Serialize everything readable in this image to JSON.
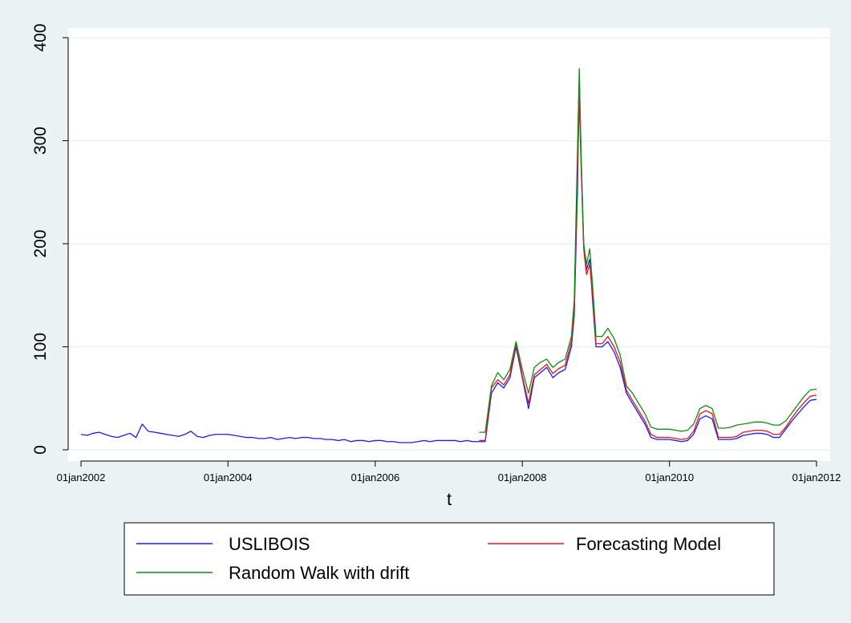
{
  "chart_data": {
    "type": "line",
    "x_label": "t",
    "x": [
      "2002-01-01",
      "2002-02-01",
      "2002-03-01",
      "2002-04-01",
      "2002-05-01",
      "2002-06-01",
      "2002-07-01",
      "2002-08-01",
      "2002-09-01",
      "2002-10-01",
      "2002-11-01",
      "2002-12-01",
      "2003-01-01",
      "2003-02-01",
      "2003-03-01",
      "2003-04-01",
      "2003-05-01",
      "2003-06-01",
      "2003-07-01",
      "2003-08-01",
      "2003-09-01",
      "2003-10-01",
      "2003-11-01",
      "2003-12-01",
      "2004-01-01",
      "2004-02-01",
      "2004-03-01",
      "2004-04-01",
      "2004-05-01",
      "2004-06-01",
      "2004-07-01",
      "2004-08-01",
      "2004-09-01",
      "2004-10-01",
      "2004-11-01",
      "2004-12-01",
      "2005-01-01",
      "2005-02-01",
      "2005-03-01",
      "2005-04-01",
      "2005-05-01",
      "2005-06-01",
      "2005-07-01",
      "2005-08-01",
      "2005-09-01",
      "2005-10-01",
      "2005-11-01",
      "2005-12-01",
      "2006-01-01",
      "2006-02-01",
      "2006-03-01",
      "2006-04-01",
      "2006-05-01",
      "2006-06-01",
      "2006-07-01",
      "2006-08-01",
      "2006-09-01",
      "2006-10-01",
      "2006-11-01",
      "2006-12-01",
      "2007-01-01",
      "2007-02-01",
      "2007-03-01",
      "2007-04-01",
      "2007-05-01",
      "2007-06-01",
      "2007-07-01",
      "2007-08-01",
      "2007-09-01",
      "2007-10-01",
      "2007-11-01",
      "2007-12-01",
      "2008-01-01",
      "2008-02-01",
      "2008-03-01",
      "2008-04-01",
      "2008-05-01",
      "2008-06-01",
      "2008-07-01",
      "2008-08-01",
      "2008-09-01",
      "2008-09-15",
      "2008-10-01",
      "2008-10-10",
      "2008-10-20",
      "2008-11-01",
      "2008-11-15",
      "2008-12-01",
      "2008-12-15",
      "2009-01-01",
      "2009-02-01",
      "2009-03-01",
      "2009-04-01",
      "2009-05-01",
      "2009-06-01",
      "2009-07-01",
      "2009-08-01",
      "2009-09-01",
      "2009-10-01",
      "2009-11-01",
      "2009-12-01",
      "2010-01-01",
      "2010-02-01",
      "2010-03-01",
      "2010-04-01",
      "2010-05-01",
      "2010-06-01",
      "2010-07-01",
      "2010-08-01",
      "2010-09-01",
      "2010-10-01",
      "2010-11-01",
      "2010-12-01",
      "2011-01-01",
      "2011-02-01",
      "2011-03-01",
      "2011-04-01",
      "2011-05-01",
      "2011-06-01",
      "2011-07-01",
      "2011-08-01",
      "2011-09-01",
      "2011-10-01",
      "2011-11-01",
      "2011-12-01",
      "2012-01-01"
    ],
    "series": [
      {
        "name": "USLIBOIS",
        "color": "#1a1aff",
        "values": [
          15,
          14,
          16,
          17,
          15,
          13,
          12,
          14,
          16,
          12,
          25,
          18,
          17,
          16,
          15,
          14,
          13,
          15,
          18,
          13,
          12,
          14,
          15,
          15,
          15,
          14,
          13,
          12,
          12,
          11,
          11,
          12,
          10,
          11,
          12,
          11,
          12,
          12,
          11,
          11,
          10,
          10,
          9,
          10,
          8,
          9,
          9,
          8,
          9,
          9,
          8,
          8,
          7,
          7,
          7,
          8,
          9,
          8,
          9,
          9,
          9,
          9,
          8,
          9,
          8,
          8,
          8,
          55,
          65,
          60,
          70,
          100,
          70,
          40,
          70,
          75,
          80,
          70,
          75,
          78,
          100,
          130,
          250,
          360,
          280,
          200,
          175,
          185,
          145,
          100,
          100,
          105,
          95,
          80,
          55,
          45,
          35,
          25,
          12,
          10,
          10,
          10,
          9,
          8,
          9,
          15,
          30,
          33,
          30,
          10,
          10,
          10,
          11,
          14,
          15,
          16,
          16,
          15,
          12,
          12,
          20,
          28,
          35,
          42,
          48,
          49
        ]
      },
      {
        "name": "Forecasting Model",
        "color": "#e8141c",
        "values": [
          null,
          null,
          null,
          null,
          null,
          null,
          null,
          null,
          null,
          null,
          null,
          null,
          null,
          null,
          null,
          null,
          null,
          null,
          null,
          null,
          null,
          null,
          null,
          null,
          null,
          null,
          null,
          null,
          null,
          null,
          null,
          null,
          null,
          null,
          null,
          null,
          null,
          null,
          null,
          null,
          null,
          null,
          null,
          null,
          null,
          null,
          null,
          null,
          null,
          null,
          null,
          null,
          null,
          null,
          null,
          null,
          null,
          null,
          null,
          null,
          null,
          null,
          null,
          null,
          null,
          9,
          9,
          60,
          68,
          63,
          73,
          103,
          72,
          45,
          73,
          78,
          83,
          74,
          79,
          82,
          105,
          135,
          270,
          340,
          270,
          195,
          170,
          180,
          150,
          103,
          103,
          110,
          100,
          85,
          58,
          48,
          38,
          28,
          15,
          12,
          12,
          12,
          11,
          10,
          11,
          18,
          35,
          38,
          35,
          12,
          12,
          12,
          13,
          17,
          18,
          19,
          19,
          18,
          15,
          15,
          22,
          31,
          39,
          46,
          52,
          53
        ]
      },
      {
        "name": "Random Walk with drift",
        "color": "#138a13",
        "values": [
          null,
          null,
          null,
          null,
          null,
          null,
          null,
          null,
          null,
          null,
          null,
          null,
          null,
          null,
          null,
          null,
          null,
          null,
          null,
          null,
          null,
          null,
          null,
          null,
          null,
          null,
          null,
          null,
          null,
          null,
          null,
          null,
          null,
          null,
          null,
          null,
          null,
          null,
          null,
          null,
          null,
          null,
          null,
          null,
          null,
          null,
          null,
          null,
          null,
          null,
          null,
          null,
          null,
          null,
          null,
          null,
          null,
          null,
          null,
          null,
          null,
          null,
          null,
          null,
          null,
          17,
          17,
          62,
          75,
          68,
          78,
          105,
          78,
          55,
          80,
          85,
          88,
          80,
          85,
          88,
          110,
          145,
          290,
          370,
          275,
          200,
          180,
          195,
          160,
          110,
          110,
          118,
          108,
          92,
          62,
          55,
          45,
          35,
          22,
          20,
          20,
          20,
          19,
          18,
          19,
          25,
          40,
          43,
          40,
          21,
          21,
          22,
          24,
          25,
          26,
          27,
          27,
          26,
          24,
          24,
          28,
          36,
          44,
          52,
          58,
          59
        ]
      }
    ],
    "xlim": [
      "2002-01-01",
      "2012-01-01"
    ],
    "xticks": [
      {
        "value": "2002-01-01",
        "label": "01jan2002"
      },
      {
        "value": "2004-01-01",
        "label": "01jan2004"
      },
      {
        "value": "2006-01-01",
        "label": "01jan2006"
      },
      {
        "value": "2008-01-01",
        "label": "01jan2008"
      },
      {
        "value": "2010-01-01",
        "label": "01jan2010"
      },
      {
        "value": "2012-01-01",
        "label": "01jan2012"
      }
    ],
    "ylim": [
      0,
      400
    ],
    "yticks": [
      0,
      100,
      200,
      300,
      400
    ],
    "grid": true
  }
}
